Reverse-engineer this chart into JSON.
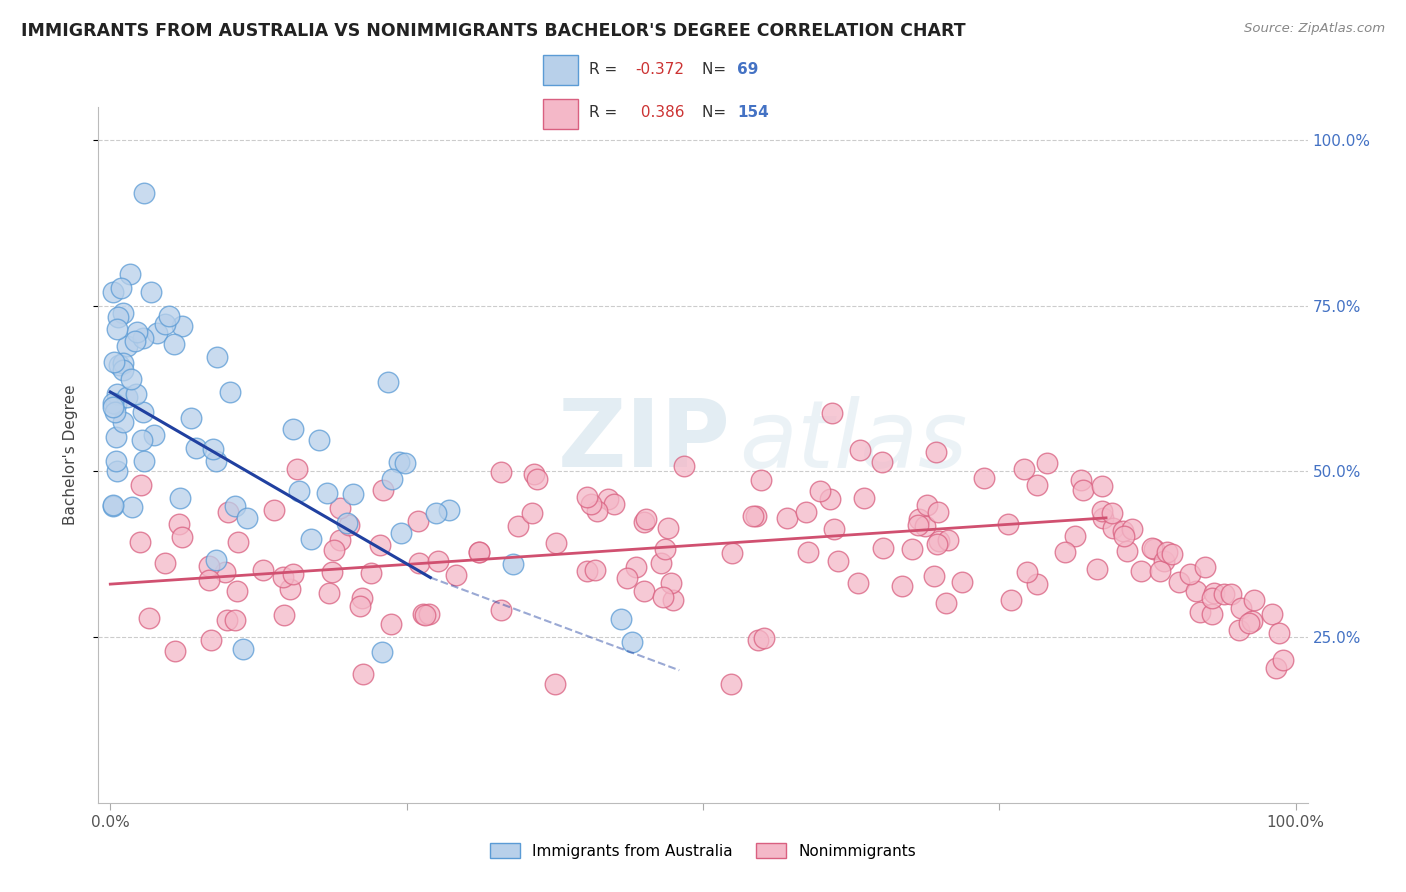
{
  "title": "IMMIGRANTS FROM AUSTRALIA VS NONIMMIGRANTS BACHELOR'S DEGREE CORRELATION CHART",
  "source": "Source: ZipAtlas.com",
  "ylabel": "Bachelor's Degree",
  "legend": {
    "blue_label": "Immigrants from Australia",
    "pink_label": "Nonimmigrants",
    "blue_R": -0.372,
    "blue_N": 69,
    "pink_R": 0.386,
    "pink_N": 154
  },
  "background_color": "#ffffff",
  "blue_dot_color": "#b8d0ea",
  "blue_dot_edge": "#5b9bd5",
  "pink_dot_color": "#f4b8c8",
  "pink_dot_edge": "#d96080",
  "blue_line_color": "#2040a0",
  "pink_line_color": "#d05070",
  "grid_color": "#cccccc",
  "right_axis_color": "#4472c4",
  "watermark_color": "#d8e8f0"
}
